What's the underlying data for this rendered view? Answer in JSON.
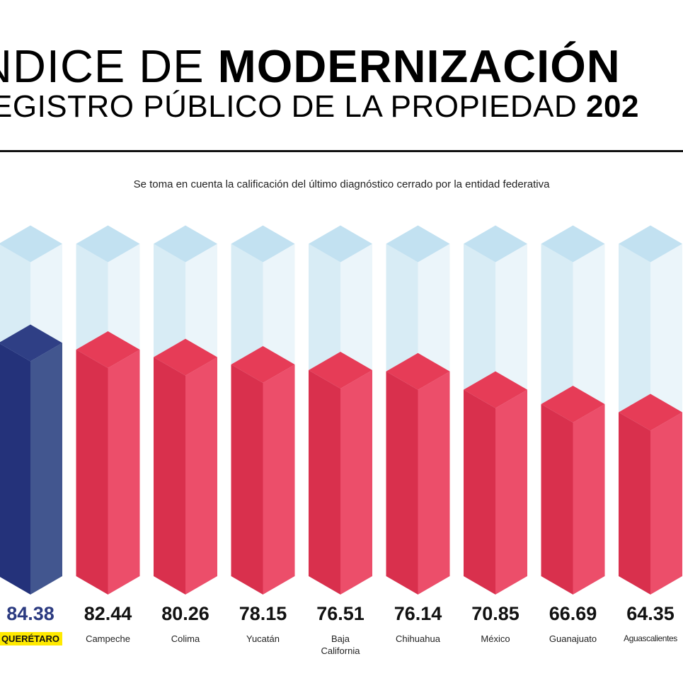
{
  "header": {
    "title_line1_light": "NDICE DE ",
    "title_line1_bold": "MODERNIZACIÓN",
    "title_line2_light": "EGISTRO PÚBLICO DE LA PROPIEDAD ",
    "title_line2_bold": "202",
    "subtitle": "Se toma en cuenta la calificación del último diagnóstico cerrado por la entidad federativa"
  },
  "colors": {
    "highlight_bar": "#2b3a80",
    "normal_bar": "#e0405a",
    "ghost_bar": "#d6ebf5",
    "highlight_label_bg": "#ffea00"
  },
  "chart_data": {
    "type": "bar",
    "style": "isometric-3d",
    "title": "ÍNDICE DE MODERNIZACIÓN REGISTRO PÚBLICO DE LA PROPIEDAD",
    "subtitle": "Se toma en cuenta la calificación del último diagnóstico cerrado por la entidad federativa",
    "categories": [
      "QUERÉTARO",
      "Campeche",
      "Colima",
      "Yucatán",
      "Baja California",
      "Chihuahua",
      "México",
      "Guanajuato",
      "Aguascalientes"
    ],
    "values": [
      84.38,
      82.44,
      80.26,
      78.15,
      76.51,
      76.14,
      70.85,
      66.69,
      64.35
    ],
    "value_labels": [
      "84.38",
      "82.44",
      "80.26",
      "78.15",
      "76.51",
      "76.14",
      "70.85",
      "66.69",
      "64.35"
    ],
    "highlighted": "QUERÉTARO",
    "xlabel": "",
    "ylabel": "",
    "ylim": [
      17,
      113
    ],
    "grid": false,
    "legend": "none"
  }
}
